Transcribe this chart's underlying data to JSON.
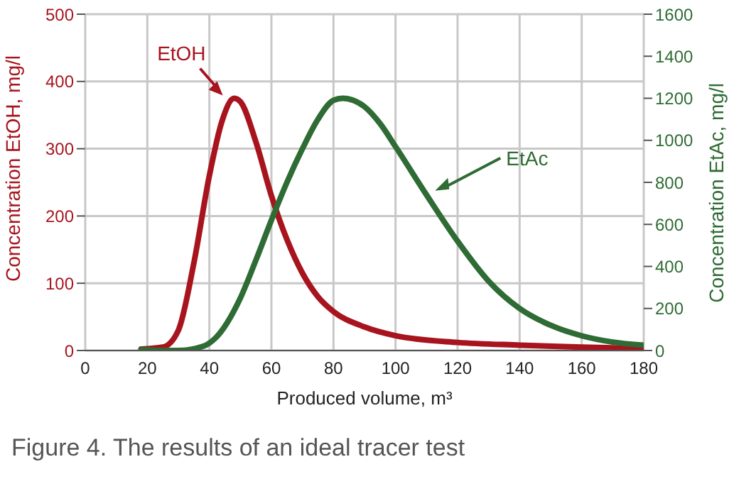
{
  "chart_data": {
    "type": "line",
    "title": "Figure 4. The results of an ideal tracer test",
    "xlabel": "Produced volume, m³",
    "ylabel": "Concentration EtOH, mg/l",
    "y2label": "Concentration EtAc, mg/l",
    "xlim": [
      0,
      180
    ],
    "xticks": [
      0,
      20,
      40,
      60,
      80,
      100,
      120,
      140,
      160,
      180
    ],
    "ylim": [
      0,
      500
    ],
    "yticks": [
      0,
      100,
      200,
      300,
      400,
      500
    ],
    "y2lim": [
      0,
      1600
    ],
    "y2ticks": [
      0,
      200,
      400,
      600,
      800,
      1000,
      1200,
      1400,
      1600
    ],
    "grid": true,
    "legend": false,
    "marker": "none",
    "line_style": "solid",
    "series": [
      {
        "name": "EtOH",
        "color": "#a8141e",
        "x": [
          18,
          25,
          30,
          35,
          40,
          44,
          48,
          50,
          55,
          60,
          65,
          70,
          75,
          80,
          90,
          100,
          120,
          140,
          160,
          180
        ],
        "values": [
          2,
          5,
          30,
          130,
          260,
          340,
          375,
          370,
          310,
          230,
          165,
          115,
          80,
          58,
          35,
          22,
          12,
          8,
          5,
          3
        ]
      },
      {
        "name": "EtAc",
        "color": "#2f6b34",
        "axis": "y2",
        "x": [
          18,
          25,
          30,
          38,
          42,
          50,
          55,
          60,
          65,
          70,
          75,
          80,
          83,
          90,
          95,
          100,
          110,
          120,
          130,
          140,
          150,
          160,
          170,
          180
        ],
        "values": [
          5,
          0,
          0,
          20,
          60,
          250,
          430,
          620,
          800,
          960,
          1100,
          1190,
          1200,
          1160,
          1080,
          970,
          740,
          520,
          330,
          200,
          120,
          70,
          40,
          25
        ]
      }
    ]
  }
}
